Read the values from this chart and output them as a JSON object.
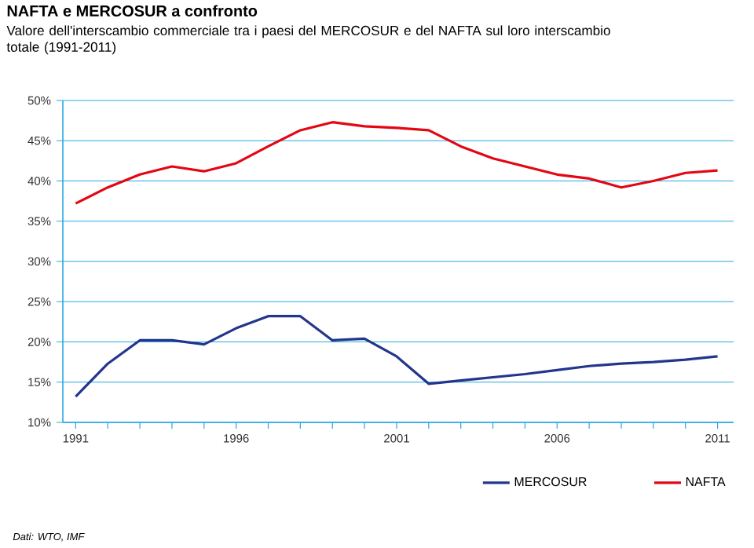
{
  "chart_data": {
    "type": "line",
    "title": "NAFTA e MERCOSUR a confronto",
    "subtitle": "Valore dell'interscambio commerciale tra i paesi del MERCOSUR e del NAFTA sul loro interscambio totale (1991-2011)",
    "x": [
      1991,
      1992,
      1993,
      1994,
      1995,
      1996,
      1997,
      1998,
      1999,
      2000,
      2001,
      2002,
      2003,
      2004,
      2005,
      2006,
      2007,
      2008,
      2009,
      2010,
      2011
    ],
    "series": [
      {
        "name": "MERCOSUR",
        "color": "#23358c",
        "values": [
          13.2,
          17.3,
          20.2,
          20.2,
          19.7,
          21.7,
          23.2,
          23.2,
          20.2,
          20.4,
          18.2,
          14.8,
          15.2,
          15.6,
          16.0,
          16.5,
          17.0,
          17.3,
          17.5,
          17.8,
          18.2
        ]
      },
      {
        "name": "NAFTA",
        "color": "#e30613",
        "values": [
          37.2,
          39.2,
          40.8,
          41.8,
          41.2,
          42.2,
          44.3,
          46.3,
          47.3,
          46.8,
          46.6,
          46.3,
          44.3,
          42.8,
          41.8,
          40.8,
          40.3,
          39.2,
          40.0,
          41.0,
          41.3
        ]
      }
    ],
    "xlim": [
      1990.6,
      2011.5
    ],
    "ylim": [
      10,
      50
    ],
    "xticks": [
      1991,
      1996,
      2001,
      2006,
      2011
    ],
    "yticks": [
      {
        "value": 10,
        "label": "10%"
      },
      {
        "value": 15,
        "label": "15%"
      },
      {
        "value": 20,
        "label": "20%"
      },
      {
        "value": 25,
        "label": "25%"
      },
      {
        "value": 30,
        "label": "30%"
      },
      {
        "value": 35,
        "label": "35%"
      },
      {
        "value": 40,
        "label": "40%"
      },
      {
        "value": 45,
        "label": "45%"
      },
      {
        "value": 50,
        "label": "50%"
      }
    ],
    "grid": "y",
    "legend": "bottom right",
    "marker": "none",
    "line_style": "solid",
    "annotations": [
      "Dati: WTO, IMF"
    ]
  }
}
